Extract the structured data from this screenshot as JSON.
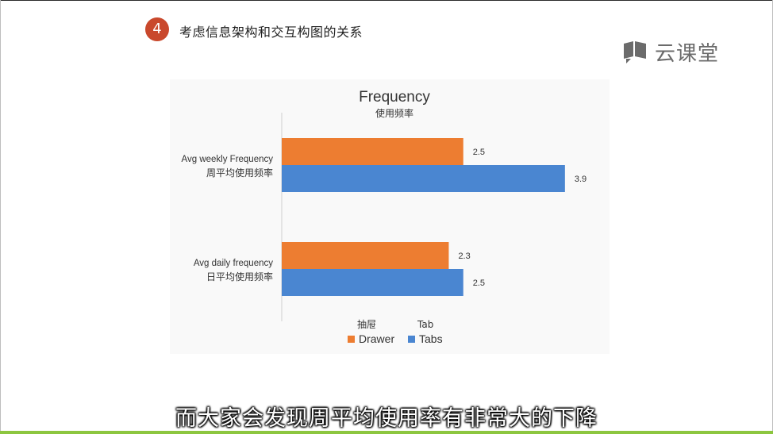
{
  "slide": {
    "step_number": "4",
    "heading": "考虑信息架构和交互构图的关系"
  },
  "logo": {
    "icon": "chat-bubble-book-icon",
    "text": "云课堂",
    "color": "#6b6b6b"
  },
  "subtitle": "而大家会发现周平均使用率有非常大的下降",
  "colors": {
    "badge": "#c9482c",
    "drawer": "#ed7d31",
    "tabs": "#4a86d1",
    "accent_line": "#8cc63f"
  },
  "chart_data": {
    "type": "bar",
    "orientation": "horizontal",
    "title": "Frequency",
    "subtitle": "使用频率",
    "categories": [
      {
        "en": "Avg weekly Frequency",
        "zh": "周平均使用频率"
      },
      {
        "en": "Avg daily frequency",
        "zh": "日平均使用频率"
      }
    ],
    "series": [
      {
        "name": "Drawer",
        "zh": "抽屉",
        "color": "#ed7d31",
        "values": [
          2.5,
          2.3
        ],
        "labels": [
          "2.5",
          "2.3"
        ]
      },
      {
        "name": "Tabs",
        "zh": "Tab",
        "color": "#4a86d1",
        "values": [
          3.9,
          2.5
        ],
        "labels": [
          "3.9",
          "2.5"
        ]
      }
    ],
    "xlim": [
      0,
      4
    ],
    "grid": false,
    "legend_position": "bottom"
  }
}
